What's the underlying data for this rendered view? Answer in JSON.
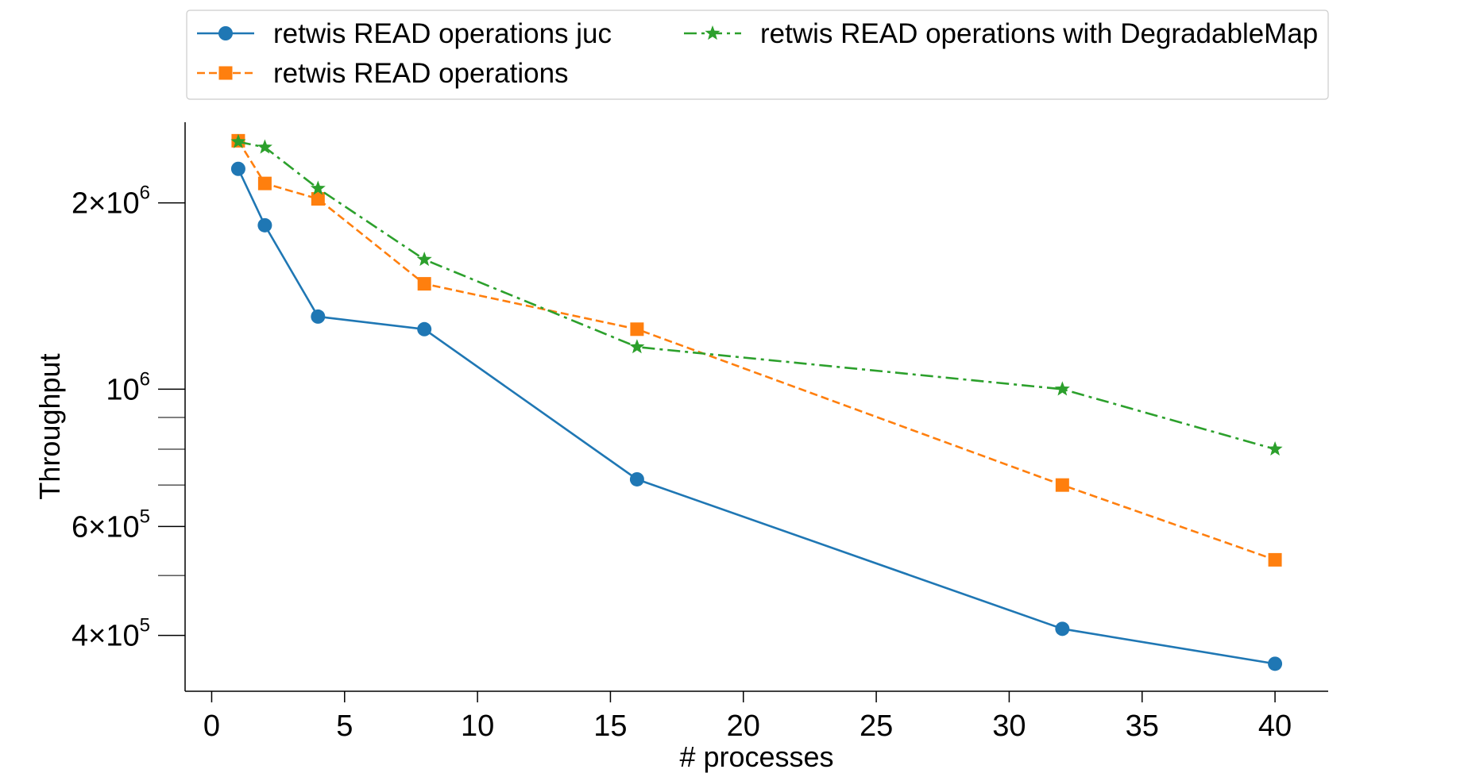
{
  "chart_data": {
    "type": "line",
    "title": "",
    "xlabel": "# processes",
    "ylabel": "Throughput",
    "xlim": [
      -1,
      42
    ],
    "ylim": [
      325000,
      2700000
    ],
    "yscale": "log",
    "grid": false,
    "legend_position": "top, outside plot area",
    "x_ticks": [
      0,
      5,
      10,
      15,
      20,
      25,
      30,
      35,
      40
    ],
    "x_tick_labels": [
      "0",
      "5",
      "10",
      "15",
      "20",
      "25",
      "30",
      "35",
      "40"
    ],
    "y_major_ticks": [
      {
        "value": 400000,
        "mantissa": "4",
        "times": "×",
        "base": "10",
        "exponent": "5"
      },
      {
        "value": 600000,
        "mantissa": "6",
        "times": "×",
        "base": "10",
        "exponent": "5"
      },
      {
        "value": 1000000,
        "mantissa": "",
        "times": "",
        "base": "10",
        "exponent": "6"
      },
      {
        "value": 2000000,
        "mantissa": "2",
        "times": "×",
        "base": "10",
        "exponent": "6"
      }
    ],
    "y_minor_ticks": [
      500000,
      700000,
      800000,
      900000
    ],
    "series": [
      {
        "name": "retwis READ operations juc",
        "color": "#1f77b4",
        "linestyle": "solid",
        "marker": "circle",
        "x": [
          1,
          2,
          4,
          8,
          16,
          32,
          40
        ],
        "y": [
          2270000,
          1840000,
          1310000,
          1250000,
          715000,
          410000,
          360000
        ]
      },
      {
        "name": "retwis READ operations",
        "color": "#ff7f0e",
        "linestyle": "dashed",
        "marker": "square",
        "x": [
          1,
          2,
          4,
          8,
          16,
          32,
          40
        ],
        "y": [
          2520000,
          2150000,
          2030000,
          1480000,
          1250000,
          700000,
          530000
        ]
      },
      {
        "name": "retwis READ operations with DegradableMap",
        "color": "#2ca02c",
        "linestyle": "dashdot",
        "marker": "star",
        "x": [
          1,
          2,
          4,
          8,
          16,
          32,
          40
        ],
        "y": [
          2510000,
          2460000,
          2110000,
          1620000,
          1170000,
          1000000,
          800000
        ]
      }
    ]
  }
}
